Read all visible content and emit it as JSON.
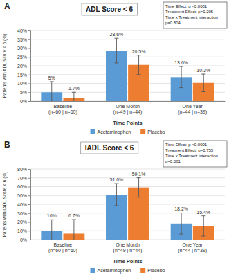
{
  "chart_data": [
    {
      "type": "bar",
      "panel_label": "A",
      "title": "ADL Score < 6",
      "x_label": "Time Points",
      "y_label": "Patients with ADL Score < 6 (%)",
      "annotations": [
        "Time Effect: p <0.0001",
        "Treatment Effect: p=0.205",
        "Time x Treatment interaction",
        "p=0.804"
      ],
      "categories": [
        "Baseline\n(n=60 | n=60)",
        "One Month\n(n=49 | n=44)",
        "One Year\n(n=44 | n=39)"
      ],
      "series": [
        {
          "name": "Acetaminophen",
          "color": "#5b9bd5",
          "values": [
            5,
            28.6,
            13.6
          ],
          "value_labels": [
            "5%",
            "28.6%",
            "13.6%"
          ],
          "errors": [
            6,
            7,
            6
          ]
        },
        {
          "name": "Placebo",
          "color": "#ed7d31",
          "values": [
            1.7,
            20.5,
            10.3
          ],
          "value_labels": [
            "1.7%",
            "20.5%",
            "10.3%"
          ],
          "errors": [
            3.3,
            5.5,
            5
          ]
        }
      ],
      "ylim": [
        0,
        40
      ],
      "yticks": [
        {
          "value": 0,
          "label": "0%"
        },
        {
          "value": 5,
          "label": "5%"
        },
        {
          "value": 10,
          "label": "10%"
        },
        {
          "value": 15,
          "label": "15%"
        },
        {
          "value": 20,
          "label": "20%"
        },
        {
          "value": 25,
          "label": "25%"
        },
        {
          "value": 30,
          "label": "30%"
        },
        {
          "value": 35,
          "label": "35%"
        },
        {
          "value": 40,
          "label": "40%"
        }
      ],
      "grid": true,
      "legend": "bottom",
      "data_labels": true
    },
    {
      "type": "bar",
      "panel_label": "B",
      "title": "IADL Score < 6",
      "x_label": "Time Points",
      "y_label": "Patients with IADL Score < 6 (%)",
      "annotations": [
        "Time Effect: p <0.0001",
        "Treatment Effect: p=0.755",
        "Time x Treatment interaction",
        "p=0.561"
      ],
      "categories": [
        "Baseline\n(n=60 | n=60)",
        "One Month\n(n=49 | n=44)",
        "One Year\n(n=44 | n=39)"
      ],
      "series": [
        {
          "name": "Acetaminophen",
          "color": "#5b9bd5",
          "values": [
            10,
            51.0,
            18.2
          ],
          "value_labels": [
            "10%",
            "51.0%",
            "18.2%"
          ],
          "errors": [
            12.5,
            12.5,
            12
          ]
        },
        {
          "name": "Placebo",
          "color": "#ed7d31",
          "values": [
            6.7,
            59.1,
            15.4
          ],
          "value_labels": [
            "6.7%",
            "59.1%",
            "15.4%"
          ],
          "errors": [
            16,
            11,
            11.5
          ]
        }
      ],
      "ylim": [
        0,
        80
      ],
      "yticks": [
        {
          "value": 0,
          "label": "0%"
        },
        {
          "value": 10,
          "label": "10%"
        },
        {
          "value": 20,
          "label": "20%"
        },
        {
          "value": 30,
          "label": "30%"
        },
        {
          "value": 40,
          "label": "40%"
        },
        {
          "value": 50,
          "label": "50%"
        },
        {
          "value": 60,
          "label": "60%"
        },
        {
          "value": 70,
          "label": "70%"
        },
        {
          "value": 80,
          "label": "80%"
        }
      ],
      "grid": true,
      "legend": "bottom",
      "data_labels": true
    }
  ]
}
